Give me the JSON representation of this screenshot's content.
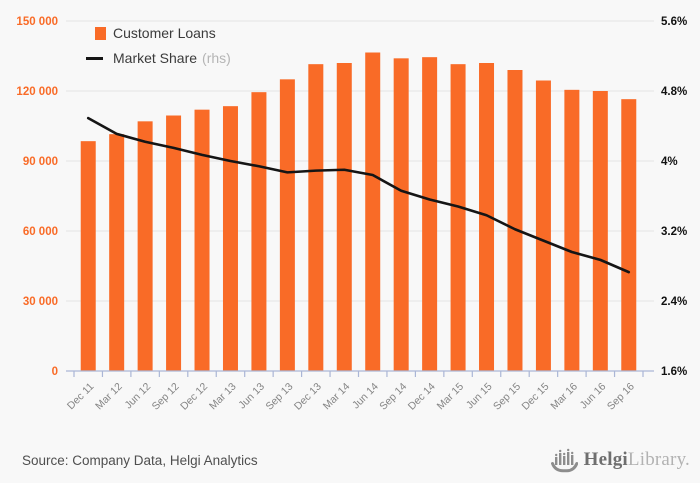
{
  "chart_data": {
    "type": "bar-line-combo",
    "title": "",
    "categories": [
      "Dec 11",
      "Mar 12",
      "Jun 12",
      "Sep 12",
      "Dec 12",
      "Mar 13",
      "Jun 13",
      "Sep 13",
      "Dec 13",
      "Mar 14",
      "Jun 14",
      "Sep 14",
      "Dec 14",
      "Mar 15",
      "Jun 15",
      "Sep 15",
      "Dec 15",
      "Mar 16",
      "Jun 16",
      "Sep 16"
    ],
    "series": [
      {
        "name": "Customer Loans",
        "type": "bar",
        "axis": "left",
        "color": "#f96b27",
        "values": [
          98500,
          101500,
          107000,
          109500,
          112000,
          113500,
          119500,
          125000,
          131500,
          132000,
          136500,
          134000,
          134500,
          131500,
          132000,
          129000,
          124500,
          120500,
          120000,
          116500
        ]
      },
      {
        "name": "Market Share",
        "type": "line",
        "axis": "right",
        "color": "#151515",
        "values": [
          4.49,
          4.31,
          4.22,
          4.15,
          4.07,
          4.0,
          3.94,
          3.87,
          3.89,
          3.9,
          3.84,
          3.66,
          3.56,
          3.48,
          3.38,
          3.22,
          3.09,
          2.96,
          2.87,
          2.73
        ]
      }
    ],
    "left_axis": {
      "min": 0,
      "max": 150000,
      "tick_labels_top_down": [
        "150 000",
        "120 000",
        "90 000",
        "60 000",
        "30 000",
        "0"
      ],
      "label_color": "#f96b27"
    },
    "right_axis": {
      "min": 1.6,
      "max": 5.6,
      "tick_labels_top_down": [
        "5.6%",
        "4.8%",
        "4%",
        "3.2%",
        "2.4%",
        "1.6%"
      ],
      "label_color": "#111111"
    },
    "x_label_color": "#858585",
    "grid": true,
    "gridline_color": "#e4e4e4",
    "axis_line_color": "#aab6d6",
    "legend_position": "top-left"
  },
  "legend": {
    "customer_loans": "Customer Loans",
    "market_share": "Market Share",
    "rhs": "(rhs)"
  },
  "footer": {
    "source": "Source: Company Data, Helgi Analytics",
    "brand_bold": "Helgi",
    "brand_light": "Library."
  }
}
